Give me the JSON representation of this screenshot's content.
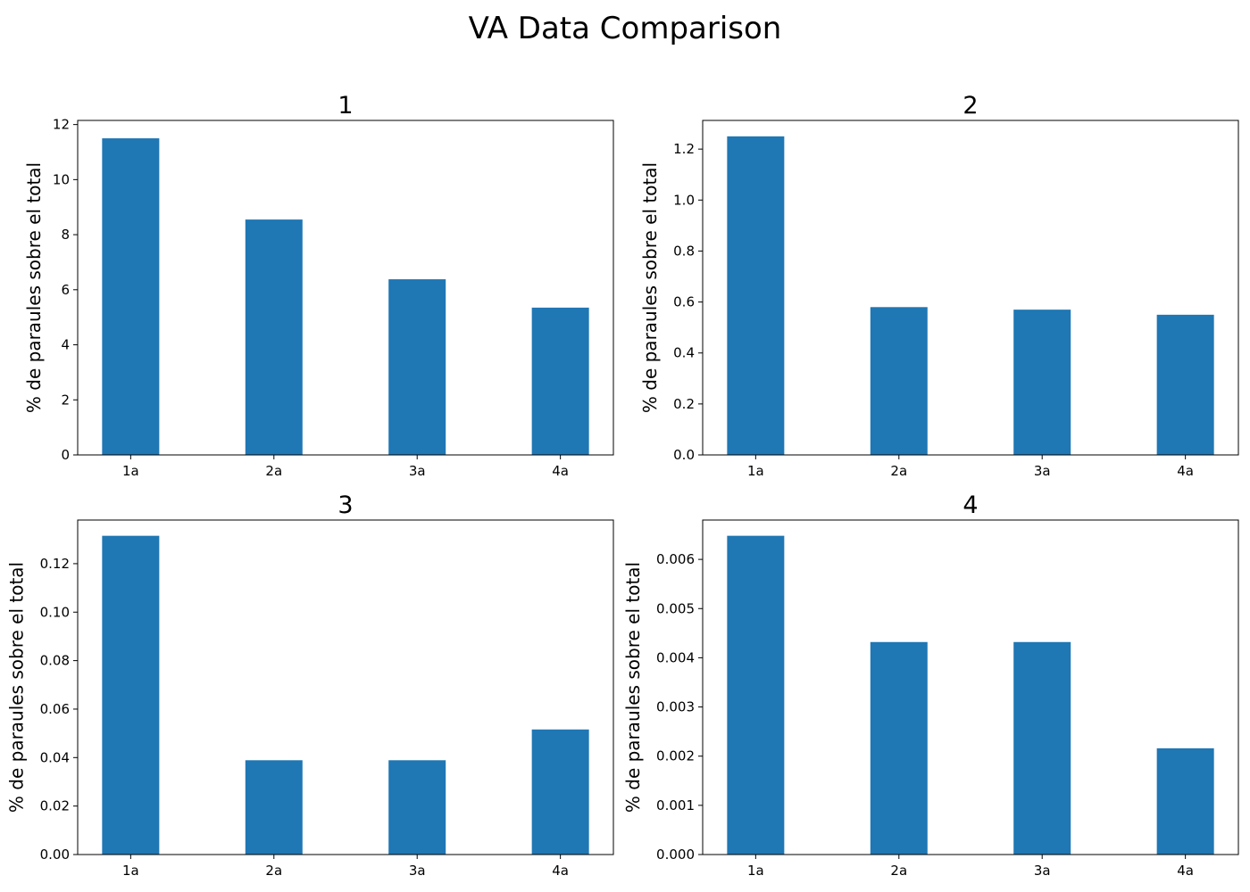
{
  "figure": {
    "title": "VA Data Comparison"
  },
  "colors": {
    "bar": "#1f77b4",
    "axis": "#000000",
    "background": "#ffffff"
  },
  "chart_data": [
    {
      "type": "bar",
      "title": "1",
      "xlabel": "",
      "ylabel": "% de paraules sobre el total",
      "categories": [
        "1a",
        "2a",
        "3a",
        "4a"
      ],
      "values": [
        11.5,
        8.55,
        6.38,
        5.35
      ],
      "ylim": [
        0,
        12.15
      ],
      "yticks": [
        0,
        2,
        4,
        6,
        8,
        10,
        12
      ],
      "ytick_labels": [
        "0",
        "2",
        "4",
        "6",
        "8",
        "10",
        "12"
      ],
      "grid": false
    },
    {
      "type": "bar",
      "title": "2",
      "xlabel": "",
      "ylabel": "% de paraules sobre el total",
      "categories": [
        "1a",
        "2a",
        "3a",
        "4a"
      ],
      "values": [
        1.25,
        0.58,
        0.57,
        0.55
      ],
      "ylim": [
        0,
        1.3125
      ],
      "yticks": [
        0,
        0.2,
        0.4,
        0.6,
        0.8,
        1.0,
        1.2
      ],
      "ytick_labels": [
        "0.0",
        "0.2",
        "0.4",
        "0.6",
        "0.8",
        "1.0",
        "1.2"
      ],
      "grid": false
    },
    {
      "type": "bar",
      "title": "3",
      "xlabel": "",
      "ylabel": "% de paraules sobre el total",
      "categories": [
        "1a",
        "2a",
        "3a",
        "4a"
      ],
      "values": [
        0.1315,
        0.0389,
        0.0389,
        0.0516
      ],
      "ylim": [
        0,
        0.138
      ],
      "yticks": [
        0,
        0.02,
        0.04,
        0.06,
        0.08,
        0.1,
        0.12
      ],
      "ytick_labels": [
        "0.00",
        "0.02",
        "0.04",
        "0.06",
        "0.08",
        "0.10",
        "0.12"
      ],
      "grid": false
    },
    {
      "type": "bar",
      "title": "4",
      "xlabel": "",
      "ylabel": "% de paraules sobre el total",
      "categories": [
        "1a",
        "2a",
        "3a",
        "4a"
      ],
      "values": [
        0.00648,
        0.00432,
        0.00432,
        0.00216
      ],
      "ylim": [
        0,
        0.0068
      ],
      "yticks": [
        0,
        0.001,
        0.002,
        0.003,
        0.004,
        0.005,
        0.006
      ],
      "ytick_labels": [
        "0.000",
        "0.001",
        "0.002",
        "0.003",
        "0.004",
        "0.005",
        "0.006"
      ],
      "grid": false
    }
  ]
}
